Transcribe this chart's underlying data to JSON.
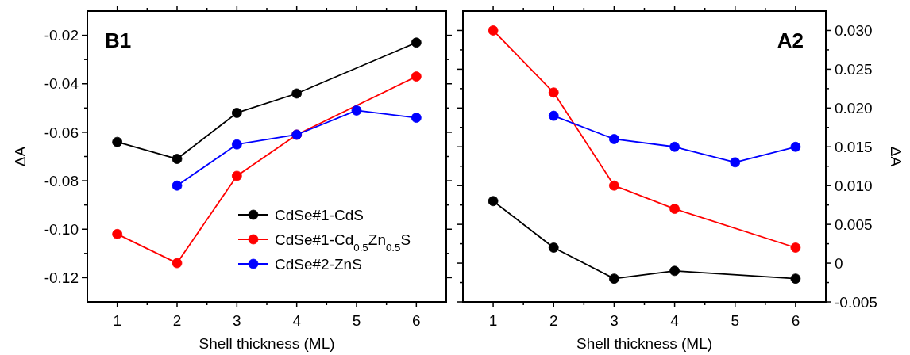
{
  "chart_data": [
    {
      "type": "line",
      "title": "B1",
      "xlabel": "Shell thickness (ML)",
      "ylabel": "ΔA",
      "xlim": [
        0.5,
        6.5
      ],
      "xticks": [
        1,
        {
          "value": 1.5,
          "label": null
        },
        2,
        {
          "value": 2.5,
          "label": null
        },
        3,
        {
          "value": 3.5,
          "label": null
        },
        4,
        {
          "value": 4.5,
          "label": null
        },
        5,
        {
          "value": 5.5,
          "label": null
        },
        6
      ],
      "ylim": [
        -0.13,
        -0.01
      ],
      "yticks": [
        {
          "value": -0.12,
          "label": "-0.12"
        },
        {
          "value": -0.11,
          "label": null
        },
        {
          "value": -0.1,
          "label": "-0.10"
        },
        {
          "value": -0.09,
          "label": null
        },
        {
          "value": -0.08,
          "label": "-0.08"
        },
        {
          "value": -0.07,
          "label": null
        },
        {
          "value": -0.06,
          "label": "-0.06"
        },
        {
          "value": -0.05,
          "label": null
        },
        {
          "value": -0.04,
          "label": "-0.04"
        },
        {
          "value": -0.03,
          "label": null
        },
        {
          "value": -0.02,
          "label": "-0.02"
        }
      ],
      "marker": "circle",
      "legend": "bottom right",
      "grid": false,
      "series": [
        {
          "name": "CdSe#1-CdS",
          "color": "#000000",
          "x": [
            1,
            2,
            3,
            4,
            6
          ],
          "values": [
            -0.064,
            -0.071,
            -0.052,
            -0.044,
            -0.023
          ]
        },
        {
          "name": "CdSe#1-Cd$_{0.5}$Zn$_{0.5}$S",
          "color": "#ff0000",
          "x": [
            1,
            2,
            3,
            4,
            6
          ],
          "values": [
            -0.102,
            -0.114,
            -0.078,
            -0.061,
            -0.037
          ]
        },
        {
          "name": "CdSe#2-ZnS",
          "color": "#0000ff",
          "x": [
            2,
            3,
            4,
            5,
            6
          ],
          "values": [
            -0.082,
            -0.065,
            -0.061,
            -0.051,
            -0.054
          ]
        }
      ]
    },
    {
      "type": "line",
      "title": "A2",
      "xlabel": "Shell thickness (ML)",
      "y2label": "ΔA",
      "xlim": [
        0.5,
        6.5
      ],
      "xticks": [
        1,
        {
          "value": 1.5,
          "label": null
        },
        2,
        {
          "value": 2.5,
          "label": null
        },
        3,
        {
          "value": 3.5,
          "label": null
        },
        4,
        {
          "value": 4.5,
          "label": null
        },
        5,
        {
          "value": 5.5,
          "label": null
        },
        6
      ],
      "y2lim": [
        -0.005,
        0.0325
      ],
      "y2ticks": [
        {
          "value": -0.005,
          "label": "-0.005"
        },
        {
          "value": -0.0025,
          "label": null
        },
        0,
        {
          "value": 0.0025,
          "label": null
        },
        {
          "value": 0.005,
          "label": "0.005"
        },
        {
          "value": 0.0075,
          "label": null
        },
        {
          "value": 0.01,
          "label": "0.010"
        },
        {
          "value": 0.0125,
          "label": null
        },
        {
          "value": 0.015,
          "label": "0.015"
        },
        {
          "value": 0.0175,
          "label": null
        },
        {
          "value": 0.02,
          "label": "0.020"
        },
        {
          "value": 0.0225,
          "label": null
        },
        {
          "value": 0.025,
          "label": "0.025"
        },
        {
          "value": 0.0275,
          "label": null
        },
        {
          "value": 0.03,
          "label": "0.030"
        }
      ],
      "marker": "circle",
      "grid": false,
      "series": [
        {
          "color": "#000000",
          "axis": "y2",
          "x": [
            1,
            2,
            3,
            4,
            6
          ],
          "values": [
            0.008,
            0.002,
            -0.002,
            -0.001,
            -0.002
          ]
        },
        {
          "color": "#ff0000",
          "axis": "y2",
          "x": [
            1,
            2,
            3,
            4,
            6
          ],
          "values": [
            0.03,
            0.022,
            0.01,
            0.007,
            0.002
          ]
        },
        {
          "color": "#0000ff",
          "axis": "y2",
          "x": [
            2,
            3,
            4,
            5,
            6
          ],
          "values": [
            0.019,
            0.016,
            0.015,
            0.013,
            0.015
          ]
        }
      ]
    }
  ]
}
